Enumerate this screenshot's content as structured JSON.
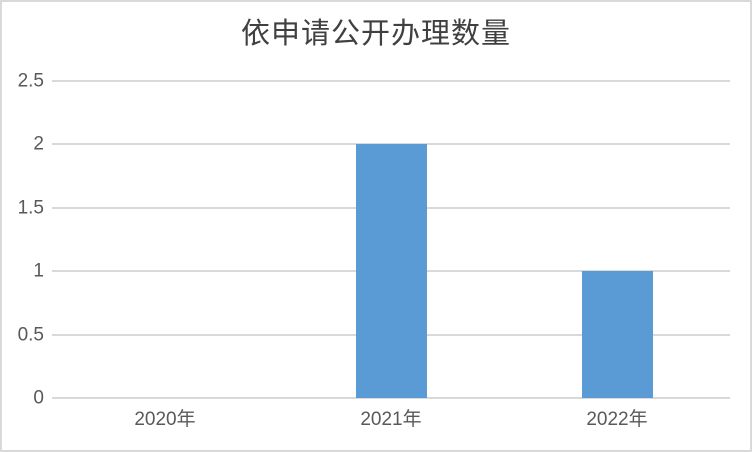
{
  "chart_data": {
    "type": "bar",
    "title": "依申请公开办理数量",
    "categories": [
      "2020年",
      "2021年",
      "2022年"
    ],
    "values": [
      0,
      2,
      1
    ],
    "ylim": [
      0,
      2.5
    ],
    "yticks": [
      "0",
      "0.5",
      "1",
      "1.5",
      "2",
      "2.5"
    ],
    "xlabel": "",
    "ylabel": "",
    "legend": "none",
    "grid": "horizontal",
    "colors": {
      "bar": "#5b9bd5",
      "gridline": "#d9d9d9",
      "axis_label": "#595959",
      "title": "#404040",
      "frame_border": "#d9d9d9",
      "background": "#ffffff"
    }
  }
}
